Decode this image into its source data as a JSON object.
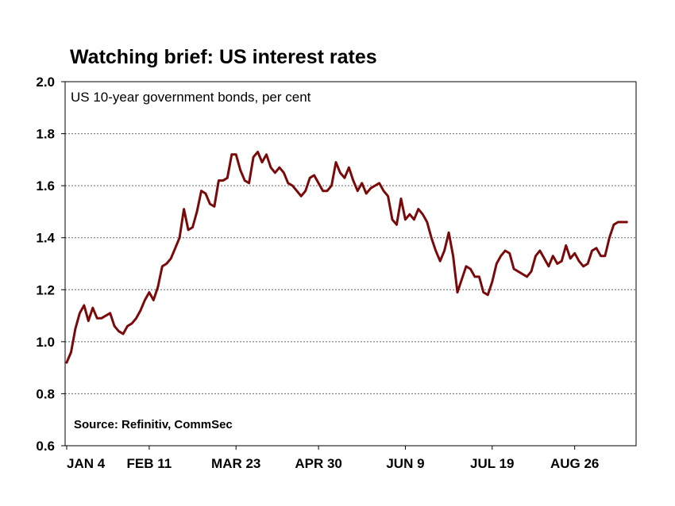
{
  "chart_data": {
    "type": "line",
    "title": "Watching brief: US interest rates",
    "subtitle": "US 10-year government bonds, per cent",
    "source": "Source: Refinitiv, CommSec",
    "xlabel": "",
    "ylabel": "",
    "ylim": [
      0.6,
      2.0
    ],
    "yticks": [
      "0.6",
      "0.8",
      "1.0",
      "1.2",
      "1.4",
      "1.6",
      "1.8",
      "2.0"
    ],
    "ytick_values": [
      0.6,
      0.8,
      1.0,
      1.2,
      1.4,
      1.6,
      1.8,
      2.0
    ],
    "xticks": [
      "JAN 4",
      "FEB 11",
      "MAR 23",
      "APR 30",
      "JUN 9",
      "JUL 19",
      "AUG 26"
    ],
    "xtick_positions": [
      0,
      38,
      78,
      116,
      156,
      196,
      234
    ],
    "xlim": [
      0,
      259
    ],
    "grid": "horizontal dotted",
    "line_color": "#7a0a0a",
    "series": [
      {
        "x": [
          0,
          2,
          4,
          6,
          8,
          10,
          12,
          14,
          16,
          18,
          20,
          22,
          24,
          26,
          28,
          30,
          32,
          34,
          36,
          38,
          40,
          42,
          44,
          46,
          48,
          50,
          52,
          54,
          56,
          58,
          60,
          62,
          64,
          66,
          68,
          70,
          72,
          74,
          76,
          78,
          80,
          82,
          84,
          86,
          88,
          90,
          92,
          94,
          96,
          98,
          100,
          102,
          104,
          106,
          108,
          110,
          112,
          114,
          116,
          118,
          120,
          122,
          124,
          126,
          128,
          130,
          132,
          134,
          136,
          138,
          140,
          142,
          144,
          146,
          148,
          150,
          152,
          154,
          156,
          158,
          160,
          162,
          164,
          166,
          168,
          170,
          172,
          174,
          176,
          178,
          180,
          182,
          184,
          186,
          188,
          190,
          192,
          194,
          196,
          198,
          200,
          202,
          204,
          206,
          208,
          210,
          212,
          214,
          216,
          218,
          220,
          222,
          224,
          226,
          228,
          230,
          232,
          234,
          236,
          238,
          240,
          242,
          244,
          246,
          248,
          250,
          252,
          254,
          256,
          258
        ],
        "values": [
          0.92,
          0.96,
          1.05,
          1.11,
          1.14,
          1.08,
          1.13,
          1.09,
          1.09,
          1.1,
          1.11,
          1.06,
          1.04,
          1.03,
          1.06,
          1.07,
          1.09,
          1.12,
          1.16,
          1.19,
          1.16,
          1.21,
          1.29,
          1.3,
          1.32,
          1.36,
          1.4,
          1.51,
          1.43,
          1.44,
          1.5,
          1.58,
          1.57,
          1.53,
          1.52,
          1.62,
          1.62,
          1.63,
          1.72,
          1.72,
          1.66,
          1.62,
          1.61,
          1.71,
          1.73,
          1.69,
          1.72,
          1.67,
          1.65,
          1.67,
          1.65,
          1.61,
          1.6,
          1.58,
          1.56,
          1.58,
          1.63,
          1.64,
          1.61,
          1.58,
          1.58,
          1.6,
          1.69,
          1.65,
          1.63,
          1.67,
          1.62,
          1.58,
          1.61,
          1.57,
          1.59,
          1.6,
          1.61,
          1.58,
          1.56,
          1.47,
          1.45,
          1.55,
          1.47,
          1.49,
          1.47,
          1.51,
          1.49,
          1.46,
          1.4,
          1.35,
          1.31,
          1.35,
          1.42,
          1.33,
          1.19,
          1.24,
          1.29,
          1.28,
          1.25,
          1.25,
          1.19,
          1.18,
          1.23,
          1.3,
          1.33,
          1.35,
          1.34,
          1.28,
          1.27,
          1.26,
          1.25,
          1.27,
          1.33,
          1.35,
          1.32,
          1.29,
          1.33,
          1.3,
          1.31,
          1.37,
          1.32,
          1.34,
          1.31,
          1.29,
          1.3,
          1.35,
          1.36,
          1.33,
          1.33,
          1.4,
          1.45,
          1.46,
          1.46,
          1.46
        ],
        "color": "#7a0a0a"
      }
    ]
  }
}
